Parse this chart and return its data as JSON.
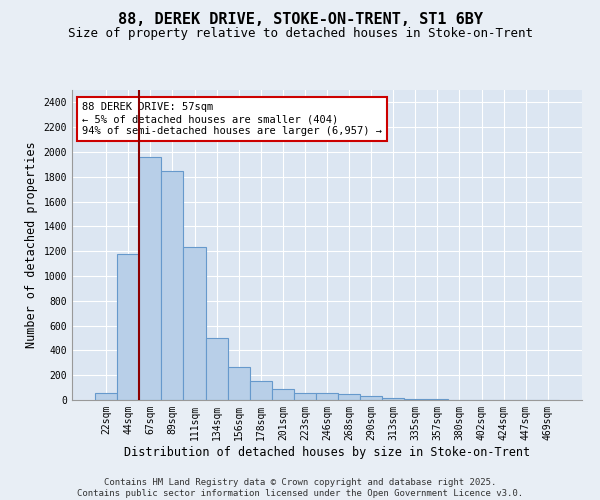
{
  "title": "88, DEREK DRIVE, STOKE-ON-TRENT, ST1 6BY",
  "subtitle": "Size of property relative to detached houses in Stoke-on-Trent",
  "xlabel": "Distribution of detached houses by size in Stoke-on-Trent",
  "ylabel": "Number of detached properties",
  "categories": [
    "22sqm",
    "44sqm",
    "67sqm",
    "89sqm",
    "111sqm",
    "134sqm",
    "156sqm",
    "178sqm",
    "201sqm",
    "223sqm",
    "246sqm",
    "268sqm",
    "290sqm",
    "313sqm",
    "335sqm",
    "357sqm",
    "380sqm",
    "402sqm",
    "424sqm",
    "447sqm",
    "469sqm"
  ],
  "values": [
    60,
    1175,
    1960,
    1850,
    1230,
    500,
    265,
    155,
    90,
    55,
    55,
    45,
    30,
    15,
    5,
    5,
    3,
    2,
    2,
    2,
    2
  ],
  "bar_color": "#b8cfe8",
  "bar_edge_color": "#6699cc",
  "vline_x": 1.5,
  "vline_color": "#8b0000",
  "annotation_text": "88 DEREK DRIVE: 57sqm\n← 5% of detached houses are smaller (404)\n94% of semi-detached houses are larger (6,957) →",
  "annotation_box_color": "#ffffff",
  "annotation_box_edge": "#cc0000",
  "background_color": "#e8eef5",
  "plot_bg_color": "#dce6f2",
  "ylim": [
    0,
    2500
  ],
  "yticks": [
    0,
    200,
    400,
    600,
    800,
    1000,
    1200,
    1400,
    1600,
    1800,
    2000,
    2200,
    2400
  ],
  "footer": "Contains HM Land Registry data © Crown copyright and database right 2025.\nContains public sector information licensed under the Open Government Licence v3.0.",
  "title_fontsize": 11,
  "subtitle_fontsize": 9,
  "axis_label_fontsize": 8.5,
  "tick_fontsize": 7,
  "annotation_fontsize": 7.5,
  "footer_fontsize": 6.5
}
